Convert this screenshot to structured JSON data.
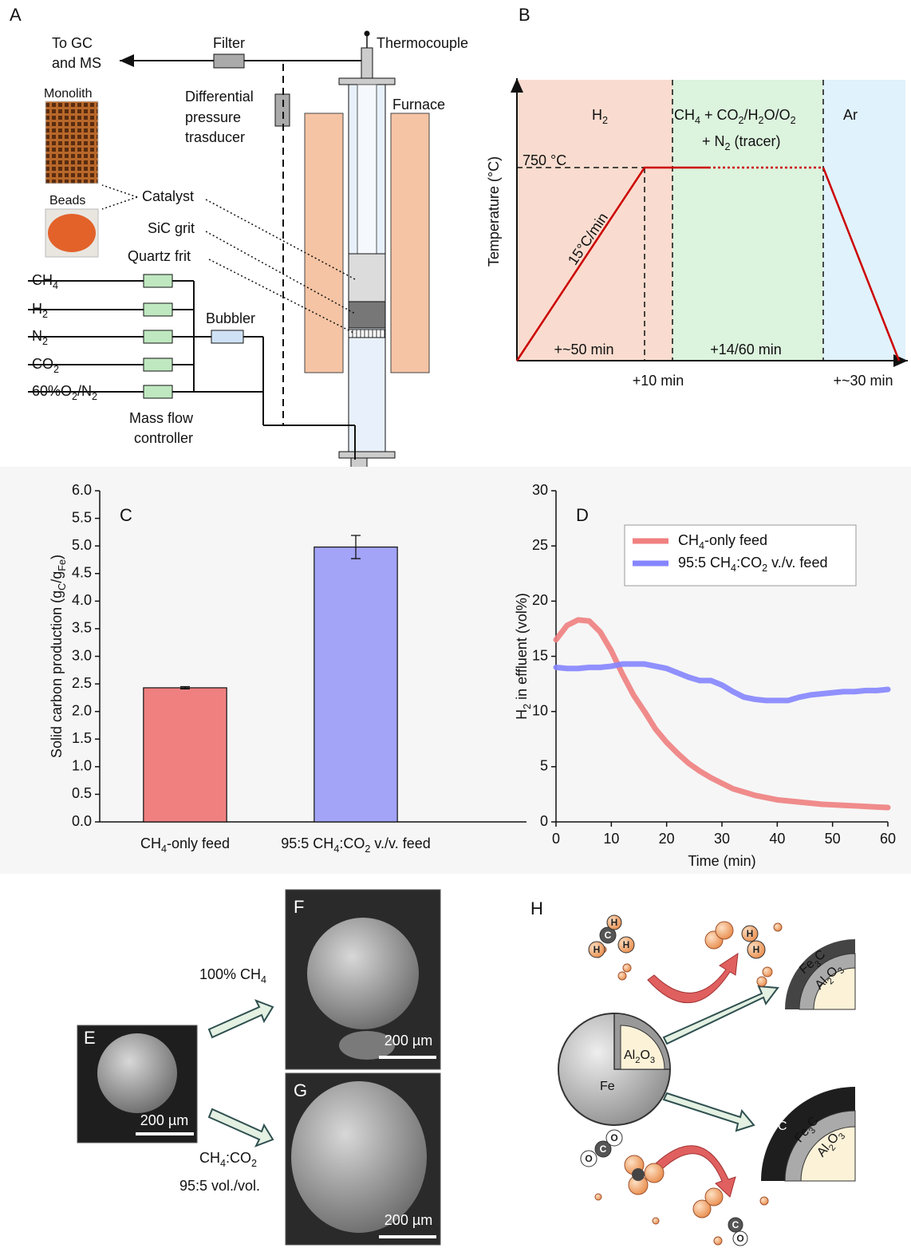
{
  "panel_a": {
    "letter": "A",
    "to_gc": [
      "To GC",
      "and MS"
    ],
    "filter": "Filter",
    "thermocouple": "Thermocouple",
    "monolith": "Monolith",
    "beads": "Beads",
    "dp_transducer": [
      "Differential",
      "pressure",
      "trasducer"
    ],
    "furnace": "Furnace",
    "catalyst": "Catalyst",
    "sic_grit": "SiC grit",
    "quartz_frit": "Quartz frit",
    "gases": [
      [
        "CH",
        "4"
      ],
      [
        "H",
        "2"
      ],
      [
        "N",
        "2"
      ],
      [
        "CO",
        "2"
      ],
      [
        "60%O",
        "2",
        "/N",
        "2"
      ]
    ],
    "bubbler": "Bubbler",
    "mfc": [
      "Mass flow",
      "controller"
    ]
  },
  "panel_b": {
    "letter": "B",
    "stages": [
      [
        "H",
        "2"
      ],
      [
        "CH",
        "4",
        " + CO",
        "2",
        "/H",
        "2",
        "O/O",
        "2"
      ],
      [
        "+ N",
        "2",
        " (tracer)"
      ],
      "Ar"
    ],
    "ylabel": "Temperature (°C)",
    "setpoint": "750 °C",
    "ramp": "15°C/min",
    "durations": [
      "+~50 min",
      "+14/60 min",
      "+10 min",
      "+~30 min"
    ]
  },
  "panels_efg": {
    "letters": [
      "E",
      "F",
      "G"
    ],
    "scale_bars": [
      "200 µm",
      "200 µm",
      "200 µm"
    ],
    "conditions": [
      [
        "100% CH",
        "4"
      ],
      [
        "CH",
        "4",
        ":CO",
        "2"
      ],
      "95:5 vol./vol."
    ]
  },
  "panel_h": {
    "letter": "H",
    "core": [
      "Fe",
      [
        "Al",
        "2",
        "O",
        "3"
      ]
    ],
    "shell_top": [
      [
        "Fe",
        "3",
        "C"
      ],
      [
        "Al",
        "2",
        "O",
        "3"
      ]
    ],
    "shell_bottom": [
      "C",
      [
        "Fe",
        "3",
        "C"
      ],
      [
        "Al",
        "2",
        "O",
        "3"
      ]
    ],
    "atoms": [
      "C",
      "H",
      "H",
      "H",
      "H",
      "H",
      "O",
      "C",
      "O",
      "C",
      "O"
    ]
  },
  "chart_data": [
    {
      "type": "bar",
      "label": "C",
      "categories": [
        [
          "CH",
          "4",
          "-only feed"
        ],
        [
          "95:5 CH",
          "4",
          ":CO",
          "2",
          " v./v. feed"
        ]
      ],
      "values": [
        2.43,
        4.98
      ],
      "errors": [
        0.02,
        0.21
      ],
      "colors": [
        "#f08080",
        "#a3a3f8"
      ],
      "ylabel": [
        "Solid carbon production (g",
        "C",
        "/g",
        "Fe",
        ")"
      ],
      "ylim": [
        0,
        6
      ],
      "yticks": [
        {
          "value": 0,
          "label": "0.0"
        },
        {
          "value": 0.5,
          "label": "0.5"
        },
        {
          "value": 1,
          "label": "1.0"
        },
        {
          "value": 1.5,
          "label": "1.5"
        },
        {
          "value": 2,
          "label": "2.0"
        },
        {
          "value": 2.5,
          "label": "2.5"
        },
        {
          "value": 3,
          "label": "3.0"
        },
        {
          "value": 3.5,
          "label": "3.5"
        },
        {
          "value": 4,
          "label": "4.0"
        },
        {
          "value": 4.5,
          "label": "4.5"
        },
        {
          "value": 5,
          "label": "5.0"
        },
        {
          "value": 5.5,
          "label": "5.5"
        },
        {
          "value": 6,
          "label": "6.0"
        }
      ]
    },
    {
      "type": "line",
      "label": "D",
      "x": [
        0,
        2,
        4,
        6,
        8,
        10,
        12,
        14,
        16,
        18,
        20,
        22,
        24,
        26,
        28,
        30,
        32,
        34,
        36,
        38,
        40,
        42,
        44,
        46,
        48,
        50,
        52,
        54,
        56,
        58,
        60
      ],
      "series": [
        {
          "name": [
            "CH",
            "4",
            "-only feed"
          ],
          "color": "#f08080",
          "values": [
            16.5,
            17.8,
            18.3,
            18.2,
            17.2,
            15.5,
            13.4,
            11.5,
            10.0,
            8.4,
            7.2,
            6.2,
            5.3,
            4.6,
            4.0,
            3.5,
            3.0,
            2.7,
            2.4,
            2.2,
            2.0,
            1.9,
            1.8,
            1.7,
            1.6,
            1.55,
            1.5,
            1.45,
            1.4,
            1.35,
            1.3
          ]
        },
        {
          "name": [
            "95:5 CH",
            "4",
            ":CO",
            "2",
            " v./v. feed"
          ],
          "color": "#8585ff",
          "values": [
            14.0,
            13.9,
            13.9,
            14.0,
            14.0,
            14.1,
            14.3,
            14.3,
            14.3,
            14.1,
            13.9,
            13.5,
            13.1,
            12.8,
            12.8,
            12.4,
            11.8,
            11.3,
            11.1,
            11.0,
            11.0,
            11.0,
            11.3,
            11.5,
            11.6,
            11.7,
            11.8,
            11.8,
            11.9,
            11.9,
            12.0
          ]
        }
      ],
      "xlim": [
        0,
        60
      ],
      "ylim": [
        0,
        30
      ],
      "xticks": [
        0,
        10,
        20,
        30,
        40,
        50,
        60
      ],
      "yticks": [
        0,
        5,
        10,
        15,
        20,
        25,
        30
      ],
      "xlabel": "Time (min)",
      "ylabel": [
        "H",
        "2",
        " in effluent (vol%)"
      ],
      "legend": "upper right"
    }
  ]
}
